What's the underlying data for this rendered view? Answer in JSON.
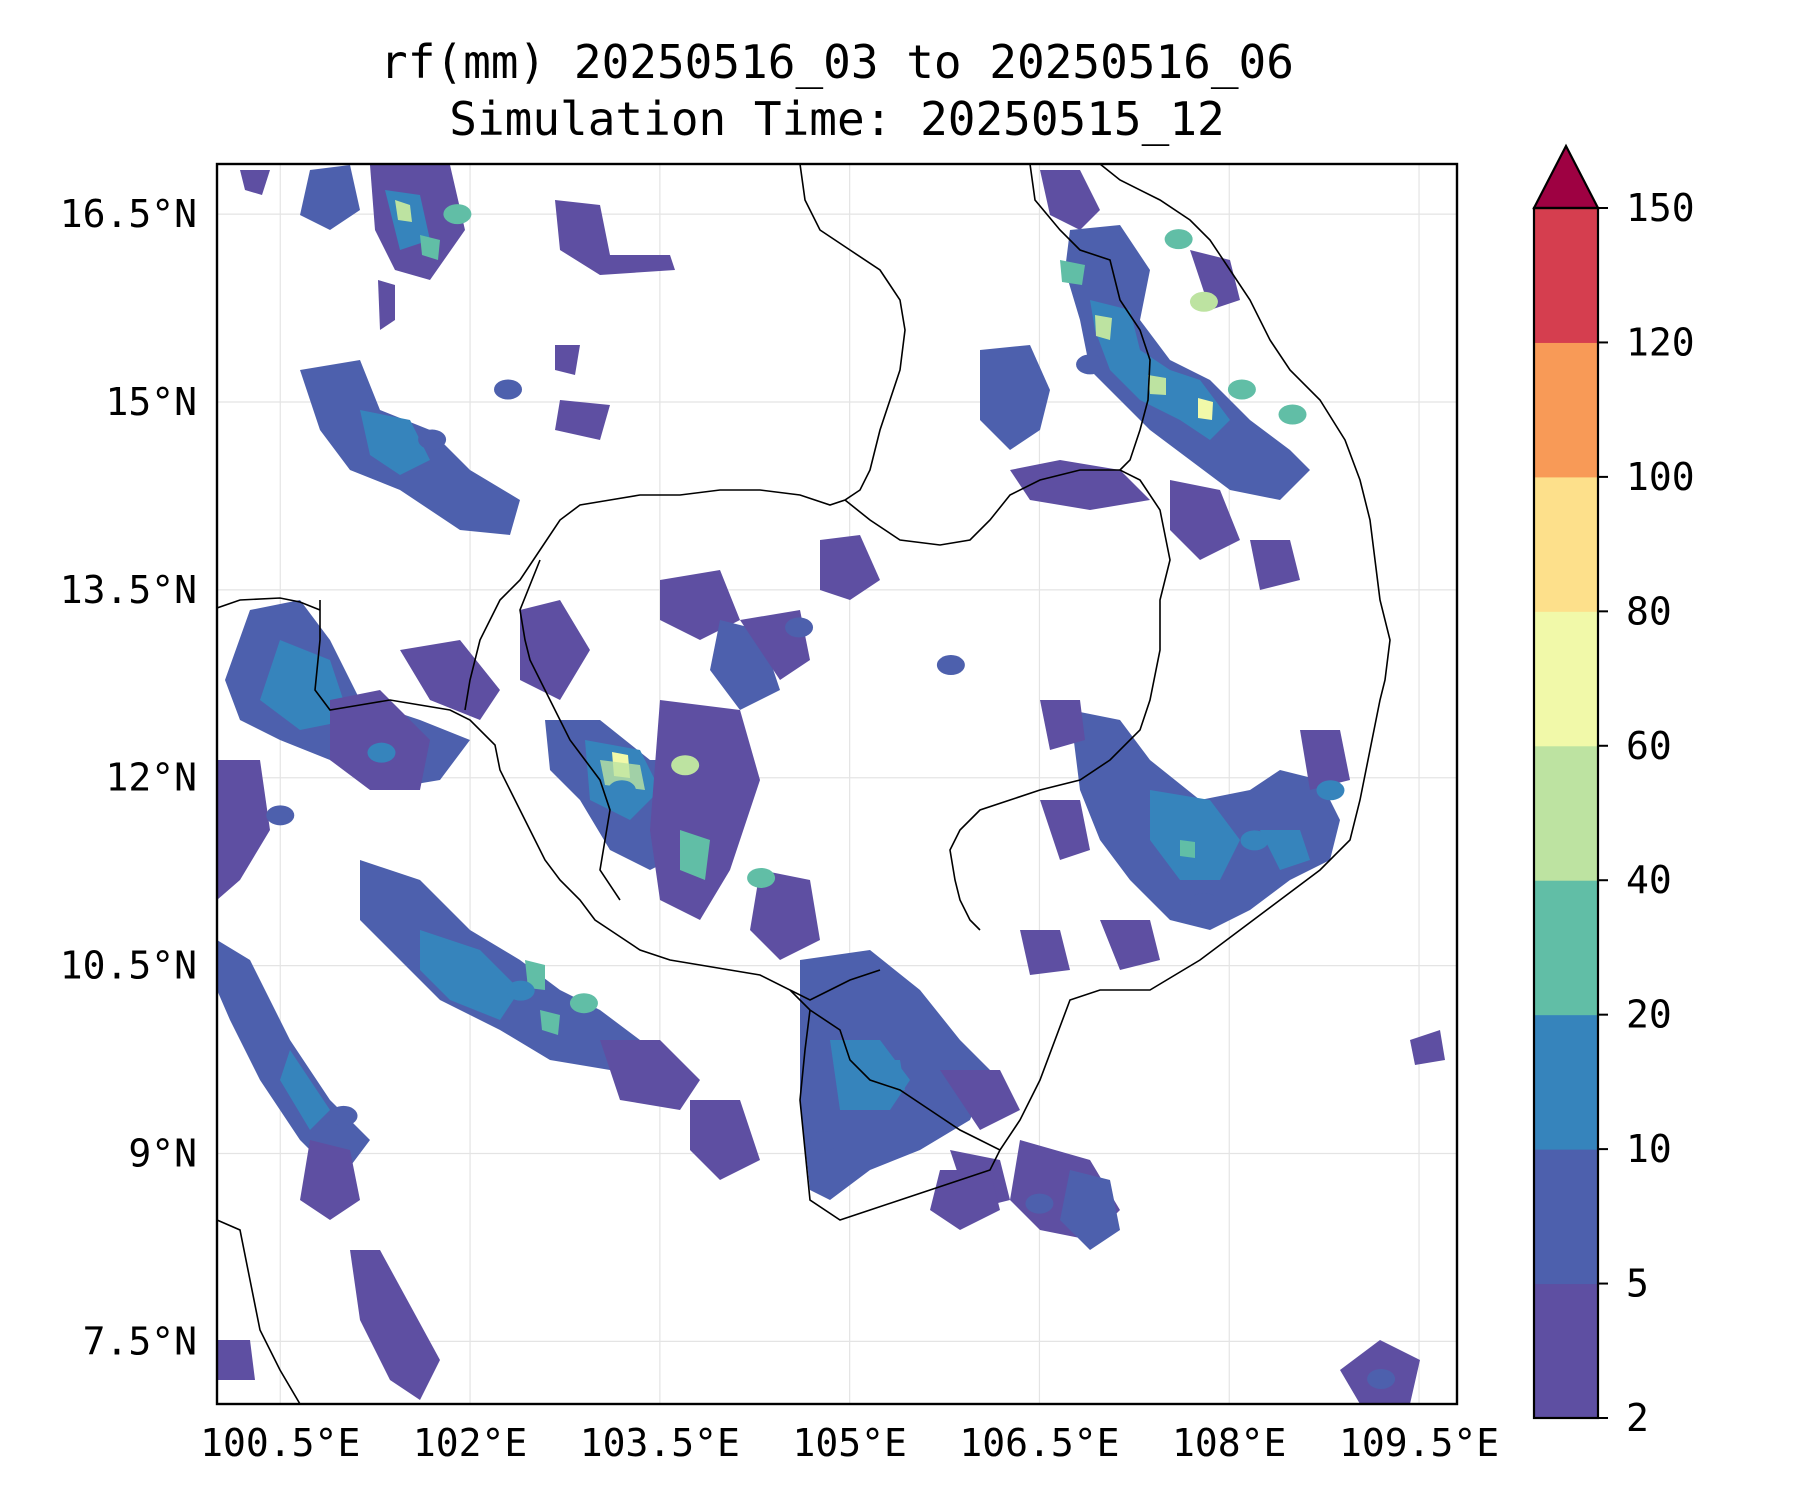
{
  "title": {
    "line1": "rf(mm) 20250516_03 to 20250516_06",
    "line2": "Simulation Time: 20250515_12"
  },
  "map": {
    "lon_range": [
      100.0,
      109.8
    ],
    "lat_range": [
      7.0,
      16.9
    ],
    "x_ticks": [
      {
        "value": 100.5,
        "label": "100.5°E"
      },
      {
        "value": 102.0,
        "label": "102°E"
      },
      {
        "value": 103.5,
        "label": "103.5°E"
      },
      {
        "value": 105.0,
        "label": "105°E"
      },
      {
        "value": 106.5,
        "label": "106.5°E"
      },
      {
        "value": 108.0,
        "label": "108°E"
      },
      {
        "value": 109.5,
        "label": "109.5°E"
      }
    ],
    "y_ticks": [
      {
        "value": 16.5,
        "label": "16.5°N"
      },
      {
        "value": 15.0,
        "label": "15°N"
      },
      {
        "value": 13.5,
        "label": "13.5°N"
      },
      {
        "value": 12.0,
        "label": "12°N"
      },
      {
        "value": 10.5,
        "label": "10.5°N"
      },
      {
        "value": 9.0,
        "label": "9°N"
      },
      {
        "value": 7.5,
        "label": "7.5°N"
      }
    ],
    "gridlines": true
  },
  "colorbar": {
    "levels": [
      "2",
      "5",
      "10",
      "20",
      "40",
      "60",
      "80",
      "100",
      "120",
      "150"
    ],
    "colors": [
      "#5e4fa2",
      "#4d60ad",
      "#3684bc",
      "#61bea6",
      "#bde3a1",
      "#f1f9a9",
      "#fde08b",
      "#f89a57",
      "#d53e4f"
    ],
    "extend_color": "#9e0142",
    "extend": "max"
  },
  "rain_cells": [
    {
      "lon": 101.9,
      "lat": 16.5,
      "value": 22
    },
    {
      "lon": 102.3,
      "lat": 15.1,
      "value": 8
    },
    {
      "lon": 101.7,
      "lat": 14.7,
      "value": 6
    },
    {
      "lon": 103.7,
      "lat": 12.1,
      "value": 45
    },
    {
      "lon": 103.2,
      "lat": 11.9,
      "value": 12
    },
    {
      "lon": 104.3,
      "lat": 11.2,
      "value": 25
    },
    {
      "lon": 102.9,
      "lat": 10.2,
      "value": 30
    },
    {
      "lon": 102.4,
      "lat": 10.3,
      "value": 15
    },
    {
      "lon": 101.3,
      "lat": 12.2,
      "value": 12
    },
    {
      "lon": 100.5,
      "lat": 11.7,
      "value": 8
    },
    {
      "lon": 101.0,
      "lat": 9.3,
      "value": 8
    },
    {
      "lon": 105.2,
      "lat": 9.6,
      "value": 14
    },
    {
      "lon": 104.8,
      "lat": 9.1,
      "value": 7
    },
    {
      "lon": 107.8,
      "lat": 15.8,
      "value": 40
    },
    {
      "lon": 108.1,
      "lat": 15.1,
      "value": 38
    },
    {
      "lon": 108.5,
      "lat": 14.9,
      "value": 35
    },
    {
      "lon": 107.6,
      "lat": 16.3,
      "value": 28
    },
    {
      "lon": 106.9,
      "lat": 15.3,
      "value": 8
    },
    {
      "lon": 108.2,
      "lat": 11.5,
      "value": 18
    },
    {
      "lon": 108.8,
      "lat": 11.9,
      "value": 10
    },
    {
      "lon": 107.8,
      "lat": 11.0,
      "value": 8
    },
    {
      "lon": 104.6,
      "lat": 13.2,
      "value": 7
    },
    {
      "lon": 105.8,
      "lat": 12.9,
      "value": 7
    },
    {
      "lon": 106.5,
      "lat": 8.6,
      "value": 6
    },
    {
      "lon": 109.2,
      "lat": 7.2,
      "value": 6
    }
  ]
}
